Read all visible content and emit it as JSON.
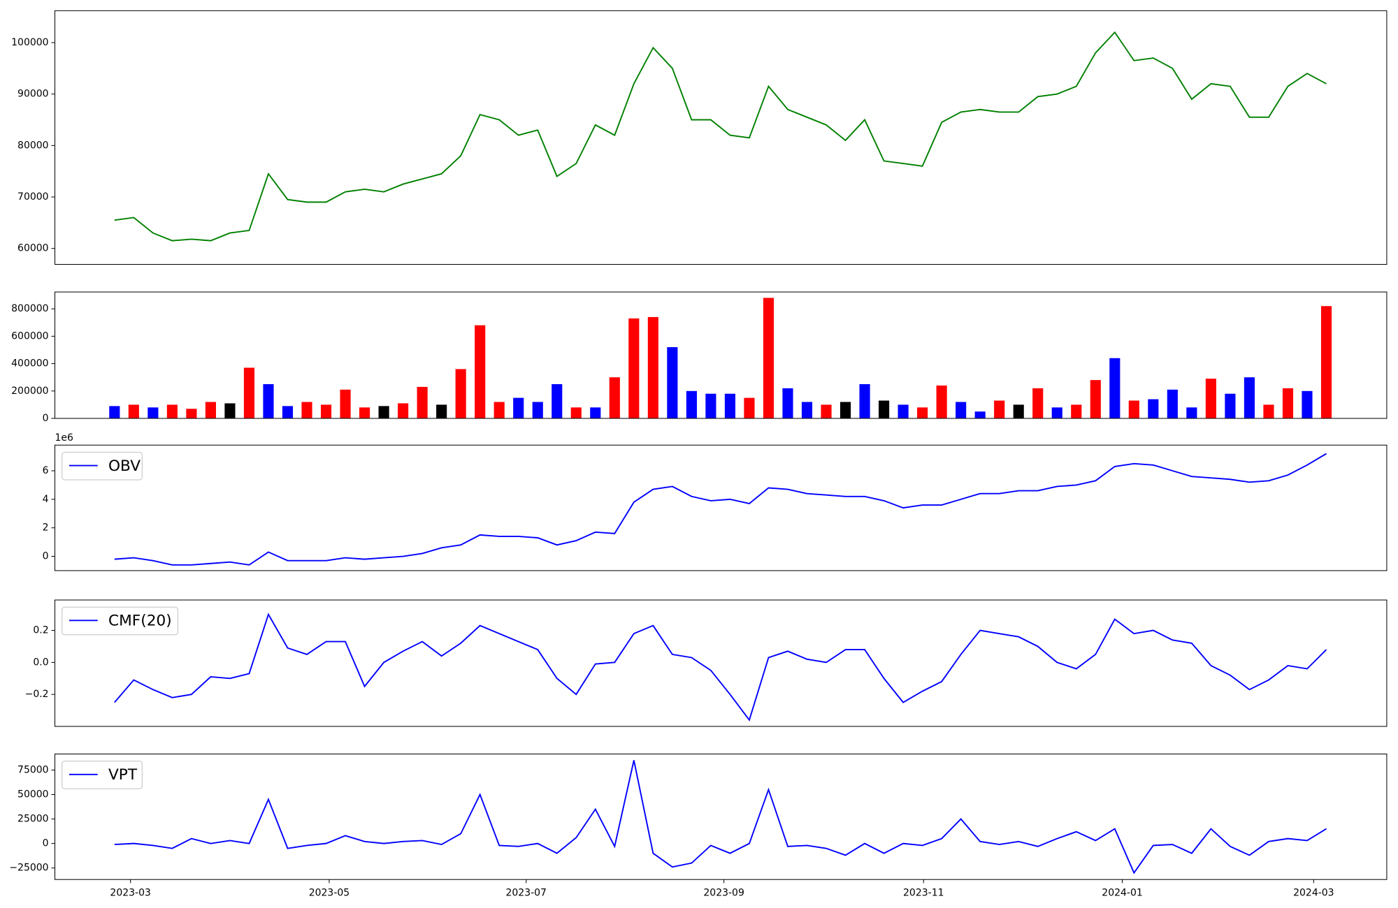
{
  "chart_data": [
    {
      "type": "line",
      "series": [
        {
          "color": "#008000",
          "values": [
            65500,
            66000,
            63000,
            61500,
            61800,
            61500,
            63000,
            63500,
            74500,
            69500,
            69000,
            69000,
            71000,
            71500,
            71000,
            72500,
            73500,
            74500,
            78000,
            86000,
            85000,
            82000,
            83000,
            74000,
            76500,
            84000,
            82000,
            92000,
            99000,
            95000,
            85000,
            85000,
            82000,
            81500,
            91500,
            87000,
            85500,
            84000,
            81000,
            85000,
            77000,
            76500,
            76000,
            84500,
            86500,
            87000,
            86500,
            86500,
            89500,
            90000,
            91500,
            98000,
            102000,
            96500,
            97000,
            95000,
            89000,
            92000,
            91500,
            85500,
            85500,
            91500,
            94000,
            92000
          ]
        }
      ],
      "xlim": [
        -3.1,
        66.14
      ],
      "ylim": [
        56900,
        106200
      ],
      "yticks": [
        60000,
        70000,
        80000,
        90000,
        100000
      ]
    },
    {
      "type": "bar",
      "values": [
        90000,
        100000,
        80000,
        100000,
        70000,
        120000,
        110000,
        370000,
        250000,
        90000,
        120000,
        100000,
        210000,
        80000,
        90000,
        110000,
        230000,
        100000,
        360000,
        680000,
        120000,
        150000,
        120000,
        250000,
        80000,
        80000,
        300000,
        730000,
        740000,
        520000,
        200000,
        180000,
        180000,
        150000,
        880000,
        220000,
        120000,
        100000,
        120000,
        250000,
        130000,
        100000,
        80000,
        240000,
        120000,
        50000,
        130000,
        100000,
        220000,
        80000,
        100000,
        280000,
        440000,
        130000,
        140000,
        210000,
        80000,
        290000,
        180000,
        300000,
        100000,
        220000,
        200000,
        820000
      ],
      "colors": [
        "blue",
        "red",
        "blue",
        "red",
        "red",
        "red",
        "black",
        "red",
        "blue",
        "blue",
        "red",
        "red",
        "red",
        "red",
        "black",
        "red",
        "red",
        "black",
        "red",
        "red",
        "red",
        "blue",
        "blue",
        "blue",
        "red",
        "blue",
        "red",
        "red",
        "red",
        "blue",
        "blue",
        "blue",
        "blue",
        "red",
        "red",
        "blue",
        "blue",
        "red",
        "black",
        "blue",
        "black",
        "blue",
        "red",
        "red",
        "blue",
        "blue",
        "red",
        "black",
        "red",
        "blue",
        "red",
        "red",
        "blue",
        "red",
        "blue",
        "blue",
        "blue",
        "red",
        "blue",
        "blue",
        "red",
        "red",
        "blue",
        "red"
      ],
      "xlim": [
        -3.1,
        66.14
      ],
      "ylim": [
        0,
        923000
      ],
      "yticks": [
        0,
        200000,
        400000,
        600000,
        800000
      ]
    },
    {
      "type": "line",
      "offset_label": "1e6",
      "legend": "upper left",
      "series": [
        {
          "name": "OBV",
          "color": "#0000ff",
          "values": [
            -0.2,
            -0.1,
            -0.3,
            -0.6,
            -0.6,
            -0.5,
            -0.4,
            -0.6,
            0.3,
            -0.3,
            -0.3,
            -0.3,
            -0.1,
            -0.2,
            -0.1,
            0.0,
            0.2,
            0.6,
            0.8,
            1.5,
            1.4,
            1.4,
            1.3,
            0.8,
            1.1,
            1.7,
            1.6,
            3.8,
            4.7,
            4.9,
            4.2,
            3.9,
            4.0,
            3.7,
            4.8,
            4.7,
            4.4,
            4.3,
            4.2,
            4.2,
            3.9,
            3.4,
            3.6,
            3.6,
            4.0,
            4.4,
            4.4,
            4.6,
            4.6,
            4.9,
            5.0,
            5.3,
            6.3,
            6.5,
            6.4,
            6.0,
            5.6,
            5.5,
            5.4,
            5.2,
            5.3,
            5.7,
            6.4,
            7.2
          ]
        }
      ],
      "xlim": [
        -3.1,
        66.14
      ],
      "ylim": [
        -1.0,
        7.8
      ],
      "yticks": [
        0,
        2,
        4,
        6
      ]
    },
    {
      "type": "line",
      "legend": "upper left",
      "series": [
        {
          "name": "CMF(20)",
          "color": "#0000ff",
          "values": [
            -0.25,
            -0.11,
            -0.17,
            -0.22,
            -0.2,
            -0.09,
            -0.1,
            -0.07,
            0.3,
            0.09,
            0.05,
            0.13,
            0.13,
            -0.15,
            0.0,
            0.07,
            0.13,
            0.04,
            0.12,
            0.23,
            0.18,
            0.13,
            0.08,
            -0.1,
            -0.2,
            -0.01,
            0.0,
            0.18,
            0.23,
            0.05,
            0.03,
            -0.05,
            -0.2,
            -0.36,
            0.03,
            0.07,
            0.02,
            0.0,
            0.08,
            0.08,
            -0.1,
            -0.25,
            -0.18,
            -0.12,
            0.05,
            0.2,
            0.18,
            0.16,
            0.1,
            0.0,
            -0.04,
            0.05,
            0.27,
            0.18,
            0.2,
            0.14,
            0.12,
            -0.02,
            -0.08,
            -0.17,
            -0.11,
            -0.02,
            -0.04,
            0.08
          ]
        }
      ],
      "xlim": [
        -3.1,
        66.14
      ],
      "ylim": [
        -0.4,
        0.39
      ],
      "yticks": [
        {
          "value": -0.2,
          "label": "−0.2"
        },
        {
          "value": 0,
          "label": "0.0"
        },
        {
          "value": 0.2,
          "label": "0.2"
        }
      ]
    },
    {
      "type": "line",
      "legend": "upper left",
      "series": [
        {
          "name": "VPT",
          "color": "#0000ff",
          "values": [
            -1000,
            0,
            -2000,
            -5000,
            5000,
            0,
            3000,
            0,
            45000,
            -5000,
            -2000,
            0,
            8000,
            2000,
            0,
            2000,
            3000,
            -1000,
            10000,
            50000,
            -2000,
            -3000,
            0,
            -10000,
            6000,
            35000,
            -3000,
            85000,
            -10000,
            -24000,
            -20000,
            -2000,
            -10000,
            0,
            55000,
            -3000,
            -2000,
            -5000,
            -12000,
            0,
            -10000,
            0,
            -2000,
            5000,
            25000,
            2000,
            -1000,
            2000,
            -3000,
            5000,
            12000,
            3000,
            15000,
            -30000,
            -2000,
            -1000,
            -10000,
            15000,
            -3000,
            -12000,
            2000,
            5000,
            3000,
            15000
          ]
        }
      ],
      "xlim": [
        -3.1,
        66.14
      ],
      "ylim": [
        -36800,
        91400
      ],
      "yticks": [
        {
          "value": -25000,
          "label": "−25000"
        },
        0,
        25000,
        50000,
        75000
      ],
      "xticks": [
        {
          "value": 0.83,
          "label": "2023-03"
        },
        {
          "value": 11.16,
          "label": "2023-05"
        },
        {
          "value": 21.4,
          "label": "2023-07"
        },
        {
          "value": 31.68,
          "label": "2023-09"
        },
        {
          "value": 42.06,
          "label": "2023-11"
        },
        {
          "value": 52.39,
          "label": "2024-01"
        },
        {
          "value": 62.34,
          "label": "2024-03"
        }
      ]
    }
  ]
}
